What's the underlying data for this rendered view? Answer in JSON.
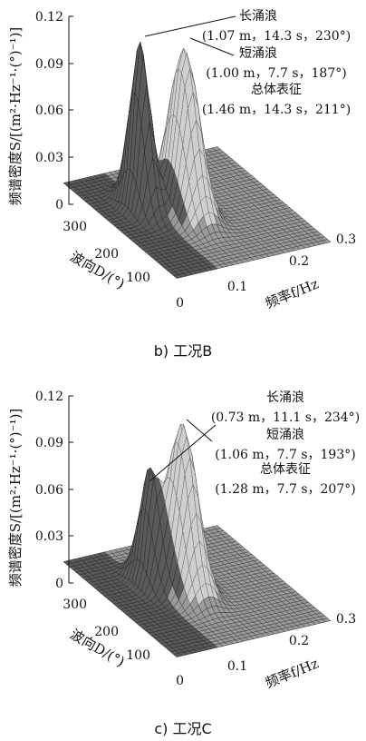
{
  "chart_data": [
    {
      "type": "surface3d",
      "caption": "b) 工况B",
      "ylabel": "频谱密度S/[(m²·Hz⁻¹·(°)⁻¹)]",
      "xlabel": "频率f/Hz",
      "dlabel": "波向D/(°)",
      "z_ticks": [
        "0",
        "0.03",
        "0.06",
        "0.09",
        "0.12"
      ],
      "f_ticks": [
        "0.1",
        "0.2",
        "0.3"
      ],
      "d_ticks": [
        "0",
        "100",
        "200",
        "300"
      ],
      "zlim": [
        0,
        0.12
      ],
      "peaks": [
        {
          "name": "长涌浪",
          "hs_m": 1.07,
          "tp_s": 14.3,
          "dir_deg": 230,
          "peak_density": 0.106
        },
        {
          "name": "短涌浪",
          "hs_m": 1.0,
          "tp_s": 7.7,
          "dir_deg": 187,
          "peak_density": 0.105
        }
      ],
      "annotations": [
        {
          "label": "长涌浪",
          "values": "(1.07 m，14.3 s，230°)"
        },
        {
          "label": "短涌浪",
          "values": "(1.00 m，7.7 s，187°)"
        },
        {
          "label": "总体表征",
          "values": "(1.46 m，14.3 s，211°)"
        }
      ]
    },
    {
      "type": "surface3d",
      "caption": "c) 工况C",
      "ylabel": "频谱密度S/[(m²·Hz⁻¹·(°)⁻¹)]",
      "xlabel": "频率f/Hz",
      "dlabel": "波向D/(°)",
      "z_ticks": [
        "0",
        "0.03",
        "0.06",
        "0.09",
        "0.12"
      ],
      "f_ticks": [
        "0.1",
        "0.2",
        "0.3"
      ],
      "d_ticks": [
        "0",
        "100",
        "200",
        "300"
      ],
      "zlim": [
        0,
        0.12
      ],
      "peaks": [
        {
          "name": "长涌浪",
          "hs_m": 0.73,
          "tp_s": 11.1,
          "dir_deg": 234,
          "peak_density": 0.067
        },
        {
          "name": "短涌浪",
          "hs_m": 1.06,
          "tp_s": 7.7,
          "dir_deg": 193,
          "peak_density": 0.107
        }
      ],
      "annotations": [
        {
          "label": "长涌浪",
          "values": "(0.73 m，11.1 s，234°)"
        },
        {
          "label": "短涌浪",
          "values": "(1.06 m，7.7 s，193°)"
        },
        {
          "label": "总体表征",
          "values": "(1.28 m，7.7 s，207°)"
        }
      ]
    }
  ]
}
